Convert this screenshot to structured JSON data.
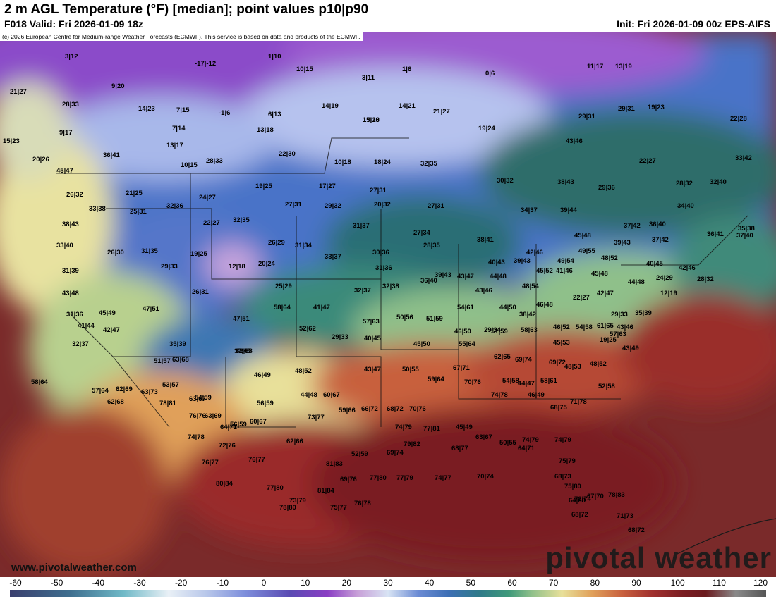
{
  "header": {
    "title": "2 m AGL Temperature (°F) [median]; point values p10|p90",
    "valid": "F018 Valid: Fri 2026-01-09 18z",
    "init": "Init: Fri 2026-01-09 00z EPS-AIFS",
    "copyright": "(c) 2026 European Centre for Medium-range Weather Forecasts (ECMWF). This service is based on data and products of the ECMWF."
  },
  "branding": {
    "website": "www.pivotalweather.com",
    "wordmark": "pivotal weather"
  },
  "colorbar": {
    "ticks": [
      "-60",
      "-50",
      "-40",
      "-30",
      "-20",
      "-10",
      "0",
      "10",
      "20",
      "30",
      "40",
      "50",
      "60",
      "70",
      "80",
      "90",
      "100",
      "110",
      "120"
    ]
  },
  "colors": {
    "cold": "#7b3fbf",
    "cool": "#4e78c9",
    "mild": "#2f7f6f",
    "warm": "#d68a4a",
    "hot": "#7a1d22"
  },
  "point_values": [
    "3|12",
    "-17|-12",
    "1|10",
    "10|15",
    "3|11",
    "1|6",
    "0|6",
    "11|17",
    "13|19",
    "21|27",
    "9|20",
    "28|33",
    "14|23",
    "7|15",
    "-1|6",
    "6|13",
    "14|19",
    "13|18",
    "14|21",
    "21|27",
    "29|31",
    "29|31",
    "19|23",
    "22|28",
    "9|17",
    "7|14",
    "13|18",
    "15|20",
    "19|24",
    "43|46",
    "15|23",
    "13|17",
    "22|30",
    "36|41",
    "20|26",
    "28|33",
    "10|15",
    "10|18",
    "18|24",
    "32|35",
    "22|27",
    "33|42",
    "45|47",
    "26|32",
    "21|25",
    "19|25",
    "17|27",
    "27|31",
    "29|32",
    "30|32",
    "38|43",
    "29|36",
    "28|32",
    "32|40",
    "33|38",
    "25|31",
    "32|36",
    "24|27",
    "27|31",
    "20|32",
    "27|31",
    "34|37",
    "39|44",
    "34|40",
    "38|43",
    "22|27",
    "32|35",
    "31|37",
    "27|34",
    "45|48",
    "37|42",
    "36|40",
    "36|41",
    "35|38",
    "33|40",
    "26|30",
    "31|35",
    "19|25",
    "26|29",
    "31|34",
    "30|36",
    "28|35",
    "38|41",
    "42|46",
    "49|55",
    "39|43",
    "37|42",
    "37|40",
    "31|39",
    "29|33",
    "12|18",
    "20|24",
    "33|37",
    "31|36",
    "39|43",
    "40|43",
    "39|43",
    "45|52",
    "49|54",
    "48|52",
    "40|45",
    "42|46",
    "43|48",
    "26|31",
    "25|29",
    "32|37",
    "32|38",
    "36|40",
    "43|47",
    "43|46",
    "44|48",
    "48|54",
    "41|46",
    "45|48",
    "44|48",
    "24|29",
    "12|19",
    "28|32",
    "31|36",
    "45|49",
    "47|51",
    "58|64",
    "41|47",
    "54|61",
    "44|50",
    "46|48",
    "42|47",
    "22|27",
    "29|33",
    "35|39",
    "41|44",
    "42|47",
    "47|51",
    "52|62",
    "57|63",
    "50|56",
    "51|59",
    "46|50",
    "29|34",
    "38|42",
    "46|52",
    "54|58",
    "61|65",
    "57|63",
    "43|46",
    "32|37",
    "29|33",
    "40|45",
    "45|50",
    "55|64",
    "51|59",
    "58|63",
    "45|53",
    "19|25",
    "35|39",
    "37|45",
    "43|49",
    "51|57",
    "62|68",
    "63|68",
    "58|64",
    "62|68",
    "62|69",
    "53|57",
    "54|59",
    "46|49",
    "48|52",
    "43|47",
    "50|55",
    "59|64",
    "67|71",
    "62|65",
    "69|74",
    "69|72",
    "48|53",
    "48|52",
    "52|58",
    "57|64",
    "63|73",
    "63|67",
    "63|69",
    "56|59",
    "56|59",
    "44|48",
    "60|67",
    "59|66",
    "66|72",
    "68|72",
    "70|76",
    "70|76",
    "74|78",
    "54|58",
    "44|47",
    "46|49",
    "58|61",
    "68|75",
    "71|78",
    "74|78",
    "64|71",
    "60|67",
    "73|77",
    "74|79",
    "77|81",
    "45|49",
    "50|55",
    "64|71",
    "74|79",
    "75|79",
    "72|76",
    "62|66",
    "52|59",
    "69|74",
    "79|82",
    "68|77",
    "63|67",
    "74|79",
    "78|81",
    "76|76",
    "76|77",
    "76|77",
    "81|83",
    "69|76",
    "77|80",
    "77|79",
    "74|77",
    "70|74",
    "68|73",
    "75|80",
    "80|84",
    "77|80",
    "73|79",
    "81|84",
    "75|77",
    "76|78",
    "64|68",
    "68|72",
    "72|74",
    "67|70",
    "78|83",
    "71|73",
    "68|72",
    "78|80"
  ]
}
